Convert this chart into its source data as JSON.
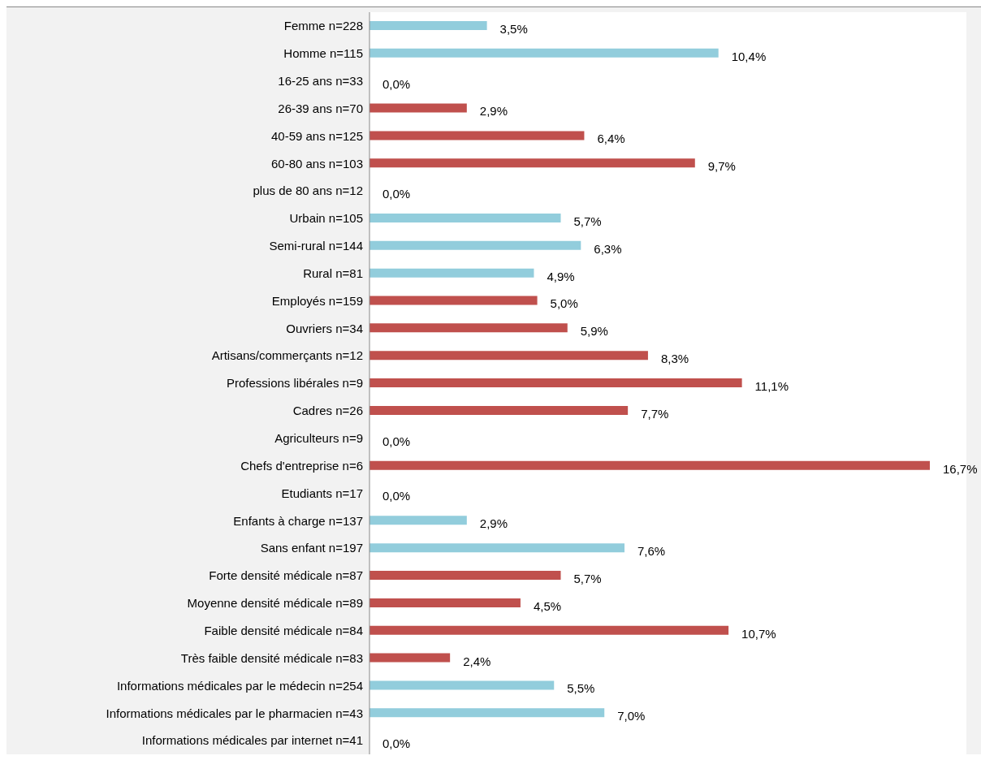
{
  "chart_data": {
    "type": "bar",
    "orientation": "horizontal",
    "categories": [
      "Femme n=228",
      "Homme n=115",
      "16-25 ans n=33",
      "26-39 ans n=70",
      "40-59 ans n=125",
      "60-80 ans n=103",
      "plus de 80 ans n=12",
      "Urbain n=105",
      "Semi-rural n=144",
      "Rural n=81",
      "Employés n=159",
      "Ouvriers n=34",
      "Artisans/commerçants n=12",
      "Professions libérales n=9",
      "Cadres n=26",
      "Agriculteurs n=9",
      "Chefs d'entreprise n=6",
      "Etudiants n=17",
      "Enfants à charge n=137",
      "Sans enfant n=197",
      "Forte densité médicale n=87",
      "Moyenne densité médicale n=89",
      "Faible densité médicale n=84",
      "Très faible densité médicale n=83",
      "Informations médicales par le médecin n=254",
      "Informations médicales par le pharmacien n=43",
      "Informations médicales par internet n=41"
    ],
    "values": [
      3.5,
      10.4,
      0,
      2.9,
      6.4,
      9.7,
      0,
      5.7,
      6.3,
      4.9,
      5.0,
      5.9,
      8.3,
      11.1,
      7.7,
      0,
      16.7,
      0,
      2.9,
      7.6,
      5.7,
      4.5,
      10.7,
      2.4,
      5.5,
      7.0,
      0
    ],
    "value_labels": [
      "3,5%",
      "10,4%",
      "0,0%",
      "2,9%",
      "6,4%",
      "9,7%",
      "0,0%",
      "5,7%",
      "6,3%",
      "4,9%",
      "5,0%",
      "5,9%",
      "8,3%",
      "11,1%",
      "7,7%",
      "0,0%",
      "16,7%",
      "0,0%",
      "2,9%",
      "7,6%",
      "5,7%",
      "4,5%",
      "10,7%",
      "2,4%",
      "5,5%",
      "7,0%",
      "0,0%"
    ],
    "colors": [
      "#92cddc",
      "#92cddc",
      "#c0504d",
      "#c0504d",
      "#c0504d",
      "#c0504d",
      "#c0504d",
      "#92cddc",
      "#92cddc",
      "#92cddc",
      "#c0504d",
      "#c0504d",
      "#c0504d",
      "#c0504d",
      "#c0504d",
      "#c0504d",
      "#c0504d",
      "#c0504d",
      "#92cddc",
      "#92cddc",
      "#c0504d",
      "#c0504d",
      "#c0504d",
      "#c0504d",
      "#92cddc",
      "#92cddc",
      "#92cddc"
    ],
    "grid": false,
    "legend": false
  }
}
